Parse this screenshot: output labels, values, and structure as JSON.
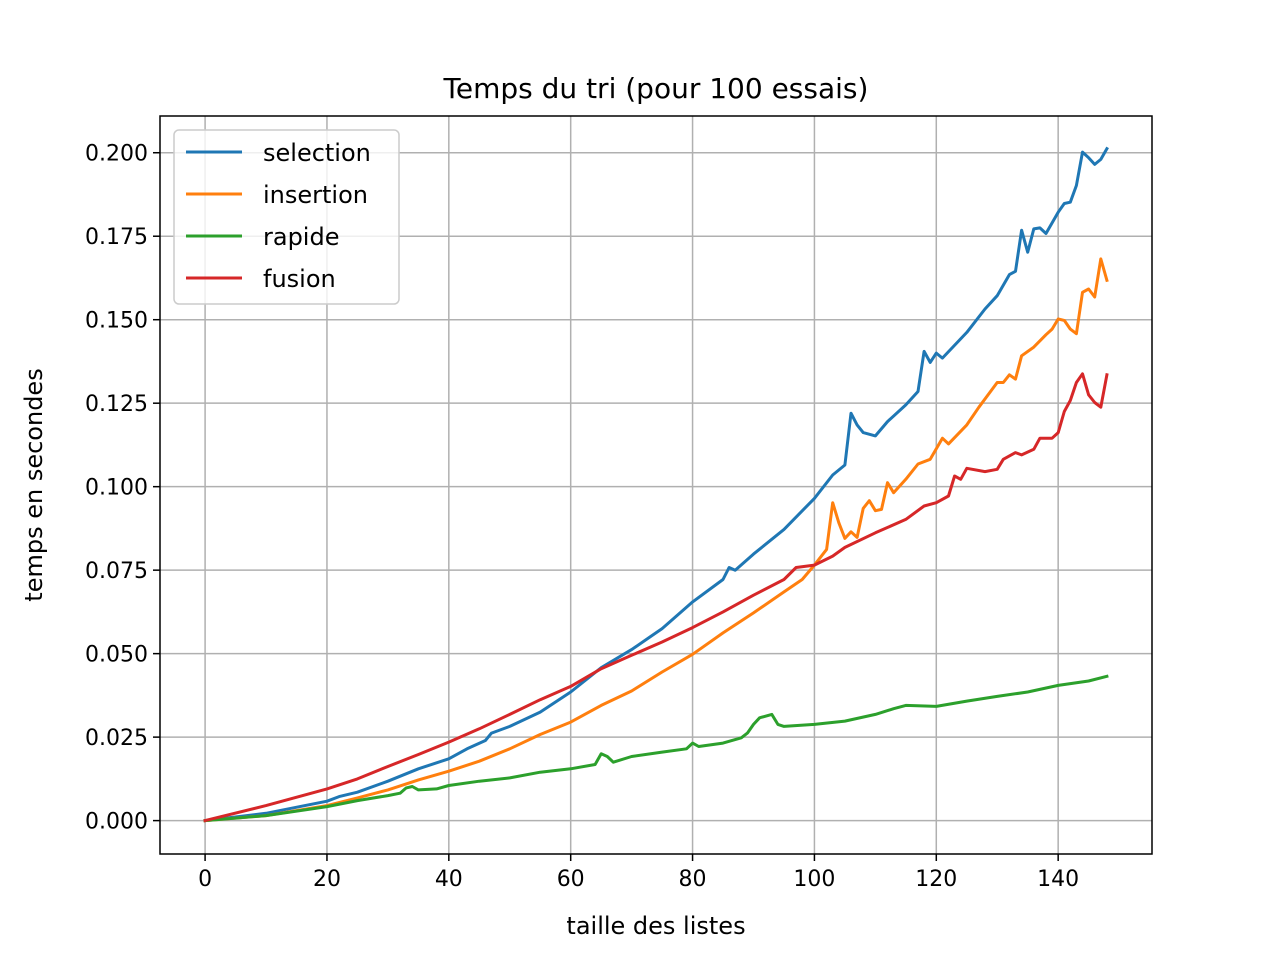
{
  "chart_data": {
    "type": "line",
    "title": "Temps du tri (pour 100 essais)",
    "xlabel": "taille des listes",
    "ylabel": "temps en secondes",
    "xlim": [
      -7.4,
      155.4
    ],
    "ylim": [
      -0.01,
      0.211
    ],
    "xticks": [
      0,
      20,
      40,
      60,
      80,
      100,
      120,
      140
    ],
    "xtick_labels": [
      "0",
      "20",
      "40",
      "60",
      "80",
      "100",
      "120",
      "140"
    ],
    "yticks": [
      0.0,
      0.025,
      0.05,
      0.075,
      0.1,
      0.125,
      0.15,
      0.175,
      0.2
    ],
    "ytick_labels": [
      "0.000",
      "0.025",
      "0.050",
      "0.075",
      "0.100",
      "0.125",
      "0.150",
      "0.175",
      "0.200"
    ],
    "grid": true,
    "legend_position": "top-left",
    "series": [
      {
        "name": "selection",
        "color": "#1f77b4",
        "points": [
          [
            0,
            0
          ],
          [
            10,
            0.0022
          ],
          [
            20,
            0.0058
          ],
          [
            22,
            0.0072
          ],
          [
            25,
            0.0085
          ],
          [
            30,
            0.0118
          ],
          [
            35,
            0.0155
          ],
          [
            40,
            0.0185
          ],
          [
            43,
            0.0215
          ],
          [
            46,
            0.024
          ],
          [
            47,
            0.0262
          ],
          [
            50,
            0.0282
          ],
          [
            55,
            0.0325
          ],
          [
            60,
            0.0385
          ],
          [
            65,
            0.0458
          ],
          [
            70,
            0.0512
          ],
          [
            75,
            0.0575
          ],
          [
            80,
            0.0655
          ],
          [
            85,
            0.0722
          ],
          [
            86,
            0.0758
          ],
          [
            87,
            0.075
          ],
          [
            90,
            0.0798
          ],
          [
            95,
            0.0872
          ],
          [
            100,
            0.0965
          ],
          [
            103,
            0.1035
          ],
          [
            105,
            0.1065
          ],
          [
            106,
            0.122
          ],
          [
            107,
            0.1185
          ],
          [
            108,
            0.1162
          ],
          [
            110,
            0.1152
          ],
          [
            112,
            0.1195
          ],
          [
            115,
            0.1245
          ],
          [
            117,
            0.1285
          ],
          [
            118,
            0.1405
          ],
          [
            119,
            0.1372
          ],
          [
            120,
            0.14
          ],
          [
            121,
            0.1385
          ],
          [
            125,
            0.1462
          ],
          [
            128,
            0.1532
          ],
          [
            130,
            0.1572
          ],
          [
            132,
            0.1635
          ],
          [
            133,
            0.1645
          ],
          [
            134,
            0.1768
          ],
          [
            135,
            0.1702
          ],
          [
            136,
            0.1772
          ],
          [
            137,
            0.1775
          ],
          [
            138,
            0.1758
          ],
          [
            140,
            0.1822
          ],
          [
            141,
            0.1848
          ],
          [
            142,
            0.1852
          ],
          [
            143,
            0.1902
          ],
          [
            144,
            0.2002
          ],
          [
            145,
            0.1985
          ],
          [
            146,
            0.1965
          ],
          [
            147,
            0.198
          ],
          [
            148,
            0.2012
          ]
        ]
      },
      {
        "name": "insertion",
        "color": "#ff7f0e",
        "points": [
          [
            0,
            0
          ],
          [
            10,
            0.0015
          ],
          [
            20,
            0.0045
          ],
          [
            25,
            0.0068
          ],
          [
            30,
            0.0092
          ],
          [
            35,
            0.0122
          ],
          [
            40,
            0.0148
          ],
          [
            45,
            0.0178
          ],
          [
            50,
            0.0215
          ],
          [
            55,
            0.0258
          ],
          [
            60,
            0.0295
          ],
          [
            65,
            0.0345
          ],
          [
            70,
            0.0388
          ],
          [
            75,
            0.0445
          ],
          [
            80,
            0.0498
          ],
          [
            85,
            0.0562
          ],
          [
            90,
            0.0622
          ],
          [
            95,
            0.0685
          ],
          [
            98,
            0.0722
          ],
          [
            100,
            0.0765
          ],
          [
            102,
            0.0812
          ],
          [
            103,
            0.0952
          ],
          [
            104,
            0.0892
          ],
          [
            105,
            0.0845
          ],
          [
            106,
            0.0865
          ],
          [
            107,
            0.0848
          ],
          [
            108,
            0.0935
          ],
          [
            109,
            0.0958
          ],
          [
            110,
            0.0928
          ],
          [
            111,
            0.0932
          ],
          [
            112,
            0.1012
          ],
          [
            113,
            0.0982
          ],
          [
            115,
            0.1022
          ],
          [
            117,
            0.1068
          ],
          [
            119,
            0.1082
          ],
          [
            121,
            0.1145
          ],
          [
            122,
            0.1128
          ],
          [
            125,
            0.1185
          ],
          [
            127,
            0.1238
          ],
          [
            130,
            0.1312
          ],
          [
            131,
            0.1312
          ],
          [
            132,
            0.1335
          ],
          [
            133,
            0.1322
          ],
          [
            134,
            0.1392
          ],
          [
            136,
            0.1418
          ],
          [
            138,
            0.1455
          ],
          [
            139,
            0.1472
          ],
          [
            140,
            0.1502
          ],
          [
            141,
            0.1498
          ],
          [
            142,
            0.1472
          ],
          [
            143,
            0.1458
          ],
          [
            144,
            0.1582
          ],
          [
            145,
            0.1592
          ],
          [
            146,
            0.1568
          ],
          [
            147,
            0.1682
          ],
          [
            148,
            0.1618
          ]
        ]
      },
      {
        "name": "rapide",
        "color": "#2ca02c",
        "points": [
          [
            0,
            0
          ],
          [
            10,
            0.0015
          ],
          [
            20,
            0.0042
          ],
          [
            25,
            0.006
          ],
          [
            30,
            0.0075
          ],
          [
            32,
            0.0082
          ],
          [
            33,
            0.0098
          ],
          [
            34,
            0.0102
          ],
          [
            35,
            0.0092
          ],
          [
            38,
            0.0095
          ],
          [
            40,
            0.0105
          ],
          [
            45,
            0.0118
          ],
          [
            50,
            0.0128
          ],
          [
            55,
            0.0145
          ],
          [
            60,
            0.0155
          ],
          [
            64,
            0.0168
          ],
          [
            65,
            0.02
          ],
          [
            66,
            0.0192
          ],
          [
            67,
            0.0175
          ],
          [
            70,
            0.0192
          ],
          [
            75,
            0.0205
          ],
          [
            79,
            0.0215
          ],
          [
            80,
            0.0232
          ],
          [
            81,
            0.0222
          ],
          [
            85,
            0.0232
          ],
          [
            88,
            0.0248
          ],
          [
            89,
            0.0262
          ],
          [
            90,
            0.0288
          ],
          [
            91,
            0.0308
          ],
          [
            93,
            0.0318
          ],
          [
            94,
            0.0288
          ],
          [
            95,
            0.0282
          ],
          [
            100,
            0.0288
          ],
          [
            105,
            0.0298
          ],
          [
            110,
            0.0318
          ],
          [
            113,
            0.0335
          ],
          [
            115,
            0.0345
          ],
          [
            120,
            0.0342
          ],
          [
            125,
            0.0358
          ],
          [
            130,
            0.0372
          ],
          [
            135,
            0.0385
          ],
          [
            140,
            0.0405
          ],
          [
            145,
            0.0418
          ],
          [
            148,
            0.0432
          ]
        ]
      },
      {
        "name": "fusion",
        "color": "#d62728",
        "points": [
          [
            0,
            0
          ],
          [
            10,
            0.0045
          ],
          [
            20,
            0.0095
          ],
          [
            25,
            0.0125
          ],
          [
            30,
            0.0162
          ],
          [
            35,
            0.0198
          ],
          [
            40,
            0.0235
          ],
          [
            45,
            0.0275
          ],
          [
            50,
            0.0318
          ],
          [
            55,
            0.0362
          ],
          [
            60,
            0.0402
          ],
          [
            65,
            0.0455
          ],
          [
            70,
            0.0495
          ],
          [
            75,
            0.0535
          ],
          [
            80,
            0.0578
          ],
          [
            85,
            0.0625
          ],
          [
            90,
            0.0675
          ],
          [
            95,
            0.0722
          ],
          [
            97,
            0.0758
          ],
          [
            100,
            0.0765
          ],
          [
            103,
            0.0792
          ],
          [
            105,
            0.0818
          ],
          [
            110,
            0.0862
          ],
          [
            115,
            0.0902
          ],
          [
            118,
            0.0942
          ],
          [
            120,
            0.0952
          ],
          [
            122,
            0.0972
          ],
          [
            123,
            0.1032
          ],
          [
            124,
            0.1022
          ],
          [
            125,
            0.1055
          ],
          [
            128,
            0.1045
          ],
          [
            130,
            0.1052
          ],
          [
            131,
            0.1082
          ],
          [
            133,
            0.1102
          ],
          [
            134,
            0.1095
          ],
          [
            136,
            0.1112
          ],
          [
            137,
            0.1145
          ],
          [
            139,
            0.1145
          ],
          [
            140,
            0.1162
          ],
          [
            141,
            0.1225
          ],
          [
            142,
            0.1258
          ],
          [
            143,
            0.1312
          ],
          [
            144,
            0.1338
          ],
          [
            145,
            0.1275
          ],
          [
            146,
            0.1252
          ],
          [
            147,
            0.1238
          ],
          [
            148,
            0.1335
          ]
        ]
      }
    ]
  }
}
